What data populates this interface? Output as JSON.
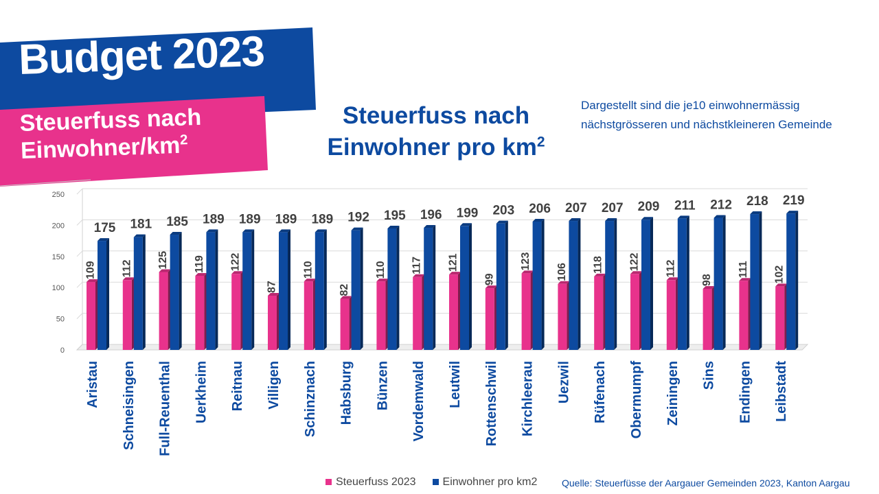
{
  "header": {
    "headline": "Budget 2023",
    "subtitle_line1": "Steuerfuss nach",
    "subtitle_line2": "Einwohner/km",
    "subtitle_sup": "2"
  },
  "chart_title_line1": "Steuerfuss nach",
  "chart_title_line2": "Einwohner pro km",
  "chart_title_sup": "2",
  "note_line1": "Dargestellt sind die je10 einwohnermässig",
  "note_line2": "nächstgrösseren und nächstkleineren  Gemeinde",
  "source": "Quelle: Steuerfüsse der Aargauer Gemeinden 2023, Kanton Aargau",
  "colors": {
    "brand_blue": "#0d4aa0",
    "brand_pink": "#e8328c",
    "series_pink": "#e8328c",
    "series_blue": "#0d4aa0"
  },
  "chart_data": {
    "type": "bar",
    "categories": [
      "Aristau",
      "Schneisingen",
      "Full-Reuenthal",
      "Uerkheim",
      "Reitnau",
      "Villigen",
      "Schinznach",
      "Habsburg",
      "Bünzen",
      "Vordemwald",
      "Leutwil",
      "Rottenschwil",
      "Kirchleerau",
      "Uezwil",
      "Rüfenach",
      "Obermumpf",
      "Zeiningen",
      "Sins",
      "Endingen",
      "Leibstadt"
    ],
    "series": [
      {
        "name": "Steuerfuss 2023",
        "color": "#e8328c",
        "values": [
          109,
          112,
          125,
          119,
          122,
          87,
          110,
          82,
          110,
          117,
          121,
          99,
          123,
          106,
          118,
          122,
          112,
          98,
          111,
          102
        ]
      },
      {
        "name": "Einwohner pro km2",
        "color": "#0d4aa0",
        "values": [
          175,
          181,
          185,
          189,
          189,
          189,
          189,
          192,
          195,
          196,
          199,
          203,
          206,
          207,
          207,
          209,
          211,
          212,
          218,
          219
        ]
      }
    ],
    "yticks": [
      "0",
      "50",
      "100",
      "150",
      "200",
      "250"
    ],
    "ylim": [
      0,
      250
    ],
    "grid": true,
    "legend": "bottom"
  }
}
